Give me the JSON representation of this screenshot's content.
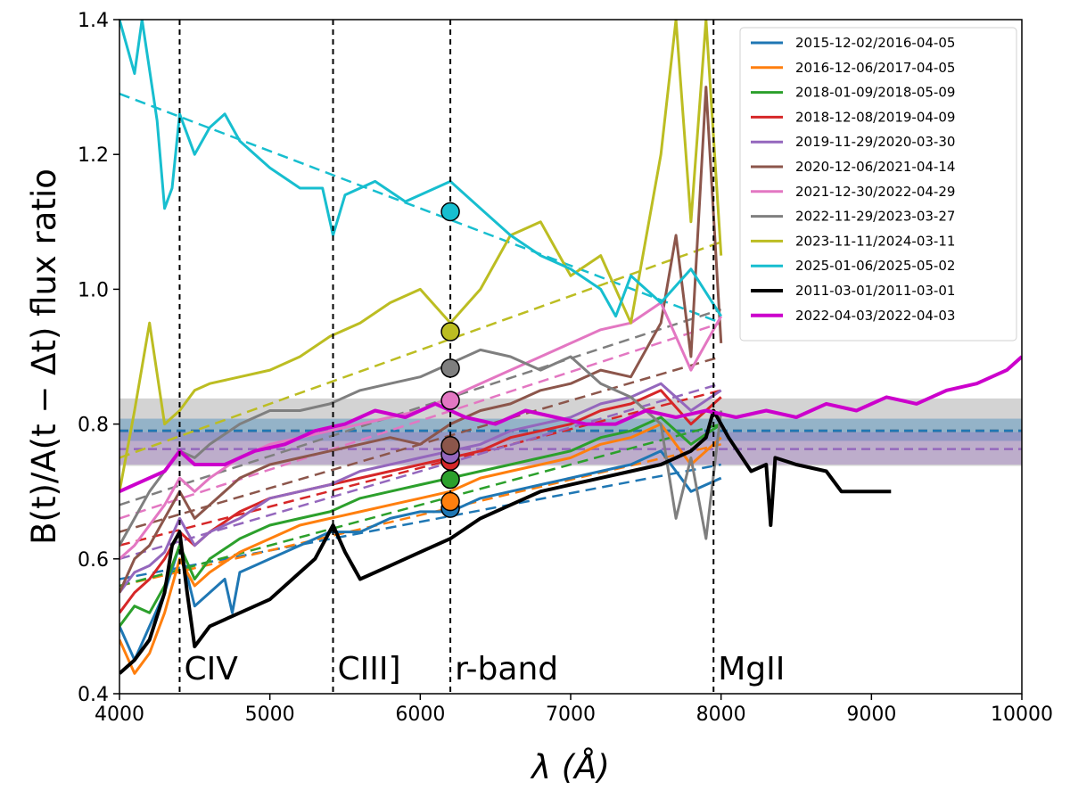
{
  "chart_data": {
    "type": "line",
    "xlabel": "λ (Å)",
    "ylabel": "B(t)/A(t − Δt) flux ratio",
    "xlim": [
      4000,
      10000
    ],
    "ylim": [
      0.4,
      1.4
    ],
    "xticks": [
      4000,
      5000,
      6000,
      7000,
      8000,
      9000,
      10000
    ],
    "yticks": [
      0.4,
      0.6,
      0.8,
      1.0,
      1.2,
      1.4
    ],
    "xtick_labels": [
      "4000",
      "5000",
      "6000",
      "7000",
      "8000",
      "9000",
      "10000"
    ],
    "ytick_labels": [
      "0.4",
      "0.6",
      "0.8",
      "1.0",
      "1.2",
      "1.4"
    ],
    "legend_position": "top-right",
    "vertical_lines": [
      {
        "x": 4400,
        "label": "CIV"
      },
      {
        "x": 5420,
        "label": "CIII]"
      },
      {
        "x": 6200,
        "label": "r-band"
      },
      {
        "x": 7950,
        "label": "MgII"
      }
    ],
    "horizontal_bands": [
      {
        "name": "band-gray",
        "y": 0.79,
        "low": 0.738,
        "high": 0.838,
        "color": "#808080",
        "line_color": "#000000"
      },
      {
        "name": "band-blue",
        "y": 0.79,
        "low": 0.775,
        "high": 0.808,
        "color": "#1f77b4",
        "line_color": "#1f77b4"
      },
      {
        "name": "band-purple",
        "y": 0.763,
        "low": 0.74,
        "high": 0.788,
        "color": "#9467bd",
        "line_color": "#9467bd"
      }
    ],
    "series": [
      {
        "name": "2015-12-02/2016-04-05",
        "color": "#1f77b4",
        "rband": 0.675,
        "fit": [
          0.57,
          0.74
        ],
        "x": [
          4000,
          4100,
          4200,
          4300,
          4400,
          4500,
          4600,
          4700,
          4750,
          4800,
          5000,
          5200,
          5400,
          5600,
          5800,
          6000,
          6200,
          6400,
          6600,
          6800,
          7000,
          7200,
          7400,
          7600,
          7800,
          8000
        ],
        "y": [
          0.5,
          0.45,
          0.5,
          0.55,
          0.62,
          0.53,
          0.55,
          0.57,
          0.52,
          0.58,
          0.6,
          0.62,
          0.64,
          0.64,
          0.66,
          0.67,
          0.67,
          0.69,
          0.7,
          0.71,
          0.72,
          0.73,
          0.74,
          0.76,
          0.7,
          0.72
        ]
      },
      {
        "name": "2016-12-06/2017-04-05",
        "color": "#ff7f0e",
        "rband": 0.685,
        "fit": [
          0.56,
          0.77
        ],
        "x": [
          4000,
          4100,
          4200,
          4300,
          4400,
          4500,
          4600,
          4800,
          5000,
          5200,
          5400,
          5600,
          5800,
          6000,
          6200,
          6400,
          6600,
          6800,
          7000,
          7200,
          7400,
          7600,
          7800,
          8000
        ],
        "y": [
          0.48,
          0.43,
          0.46,
          0.52,
          0.6,
          0.56,
          0.58,
          0.61,
          0.63,
          0.65,
          0.66,
          0.67,
          0.68,
          0.69,
          0.7,
          0.72,
          0.73,
          0.74,
          0.75,
          0.77,
          0.78,
          0.8,
          0.74,
          0.78
        ]
      },
      {
        "name": "2018-01-09/2018-05-09",
        "color": "#2ca02c",
        "rband": 0.718,
        "fit": [
          0.56,
          0.8
        ],
        "x": [
          4000,
          4100,
          4200,
          4300,
          4400,
          4500,
          4600,
          4800,
          5000,
          5200,
          5400,
          5600,
          5800,
          6000,
          6200,
          6400,
          6600,
          6800,
          7000,
          7200,
          7400,
          7600,
          7800,
          8000
        ],
        "y": [
          0.5,
          0.53,
          0.52,
          0.56,
          0.62,
          0.57,
          0.6,
          0.63,
          0.65,
          0.66,
          0.67,
          0.69,
          0.7,
          0.71,
          0.72,
          0.73,
          0.74,
          0.75,
          0.76,
          0.78,
          0.79,
          0.81,
          0.77,
          0.8
        ]
      },
      {
        "name": "2018-12-08/2019-04-09",
        "color": "#d62728",
        "rband": 0.745,
        "fit": [
          0.62,
          0.85
        ],
        "x": [
          4000,
          4100,
          4200,
          4300,
          4400,
          4500,
          4600,
          4800,
          5000,
          5200,
          5400,
          5600,
          5800,
          6000,
          6200,
          6400,
          6600,
          6800,
          7000,
          7200,
          7400,
          7600,
          7800,
          8000
        ],
        "y": [
          0.52,
          0.55,
          0.57,
          0.6,
          0.64,
          0.62,
          0.64,
          0.67,
          0.69,
          0.7,
          0.71,
          0.72,
          0.73,
          0.74,
          0.75,
          0.76,
          0.78,
          0.79,
          0.8,
          0.82,
          0.83,
          0.85,
          0.8,
          0.84
        ]
      },
      {
        "name": "2019-11-29/2020-03-30",
        "color": "#9467bd",
        "rband": 0.755,
        "fit": [
          0.6,
          0.86
        ],
        "x": [
          4000,
          4100,
          4200,
          4300,
          4400,
          4500,
          4600,
          4800,
          5000,
          5200,
          5400,
          5600,
          5800,
          6000,
          6200,
          6400,
          6600,
          6800,
          7000,
          7200,
          7400,
          7600,
          7800,
          8000
        ],
        "y": [
          0.55,
          0.58,
          0.59,
          0.61,
          0.66,
          0.62,
          0.64,
          0.66,
          0.69,
          0.7,
          0.71,
          0.73,
          0.74,
          0.75,
          0.76,
          0.77,
          0.79,
          0.8,
          0.81,
          0.83,
          0.84,
          0.86,
          0.82,
          0.85
        ]
      },
      {
        "name": "2020-12-06/2021-04-14",
        "color": "#8c564b",
        "rband": 0.768,
        "fit": [
          0.64,
          0.9
        ],
        "x": [
          4000,
          4100,
          4200,
          4300,
          4400,
          4500,
          4600,
          4800,
          5000,
          5200,
          5400,
          5600,
          5800,
          6000,
          6200,
          6400,
          6600,
          6800,
          7000,
          7200,
          7400,
          7600,
          7700,
          7800,
          7900,
          8000
        ],
        "y": [
          0.55,
          0.6,
          0.62,
          0.66,
          0.7,
          0.66,
          0.68,
          0.72,
          0.74,
          0.75,
          0.76,
          0.77,
          0.78,
          0.77,
          0.8,
          0.82,
          0.83,
          0.85,
          0.86,
          0.88,
          0.87,
          0.95,
          1.08,
          0.9,
          1.3,
          0.92
        ]
      },
      {
        "name": "2021-12-30/2022-04-29",
        "color": "#e377c2",
        "rband": 0.835,
        "fit": [
          0.66,
          0.95
        ],
        "x": [
          4000,
          4100,
          4200,
          4300,
          4400,
          4500,
          4600,
          4800,
          5000,
          5200,
          5400,
          5600,
          5800,
          6000,
          6200,
          6400,
          6600,
          6800,
          7000,
          7200,
          7400,
          7600,
          7800,
          8000
        ],
        "y": [
          0.6,
          0.62,
          0.65,
          0.68,
          0.72,
          0.7,
          0.72,
          0.75,
          0.77,
          0.78,
          0.79,
          0.8,
          0.81,
          0.82,
          0.84,
          0.86,
          0.88,
          0.9,
          0.92,
          0.94,
          0.95,
          0.98,
          0.88,
          0.96
        ]
      },
      {
        "name": "2022-11-29/2023-03-27",
        "color": "#7f7f7f",
        "rband": 0.883,
        "fit": [
          0.68,
          0.97
        ],
        "x": [
          4000,
          4100,
          4200,
          4300,
          4400,
          4500,
          4600,
          4800,
          5000,
          5200,
          5400,
          5600,
          5800,
          6000,
          6200,
          6400,
          6600,
          6800,
          7000,
          7200,
          7400,
          7600,
          7700,
          7800,
          7900,
          8000
        ],
        "y": [
          0.62,
          0.66,
          0.7,
          0.73,
          0.76,
          0.75,
          0.77,
          0.8,
          0.82,
          0.82,
          0.83,
          0.85,
          0.86,
          0.87,
          0.89,
          0.91,
          0.9,
          0.88,
          0.9,
          0.86,
          0.84,
          0.8,
          0.66,
          0.75,
          0.63,
          0.82
        ]
      },
      {
        "name": "2023-11-11/2024-03-11",
        "color": "#bcbd22",
        "rband": 0.937,
        "fit": [
          0.75,
          1.07
        ],
        "x": [
          4000,
          4100,
          4200,
          4300,
          4400,
          4500,
          4600,
          4800,
          5000,
          5200,
          5400,
          5600,
          5800,
          6000,
          6200,
          6400,
          6600,
          6800,
          7000,
          7200,
          7400,
          7600,
          7700,
          7800,
          7900,
          8000
        ],
        "y": [
          0.7,
          0.82,
          0.95,
          0.8,
          0.82,
          0.85,
          0.86,
          0.87,
          0.88,
          0.9,
          0.93,
          0.95,
          0.98,
          1.0,
          0.95,
          1.0,
          1.08,
          1.1,
          1.02,
          1.05,
          0.95,
          1.2,
          1.4,
          1.1,
          1.4,
          1.05
        ]
      },
      {
        "name": "2025-01-06/2025-05-02",
        "color": "#17becf",
        "rband": 1.115,
        "fit": [
          1.29,
          0.95
        ],
        "x": [
          4000,
          4100,
          4150,
          4250,
          4300,
          4350,
          4400,
          4500,
          4600,
          4700,
          4800,
          5000,
          5200,
          5350,
          5420,
          5500,
          5700,
          5900,
          6100,
          6200,
          6400,
          6600,
          6800,
          7000,
          7200,
          7300,
          7400,
          7600,
          7800,
          8000
        ],
        "y": [
          1.4,
          1.32,
          1.4,
          1.25,
          1.12,
          1.15,
          1.26,
          1.2,
          1.24,
          1.26,
          1.22,
          1.18,
          1.15,
          1.15,
          1.08,
          1.14,
          1.16,
          1.13,
          1.15,
          1.16,
          1.12,
          1.08,
          1.05,
          1.03,
          1.0,
          0.96,
          1.02,
          0.98,
          1.03,
          0.96
        ]
      },
      {
        "name": "2011-03-01/2011-03-01",
        "color": "#000000",
        "rband": null,
        "fit": null,
        "x": [
          4000,
          4100,
          4200,
          4300,
          4350,
          4400,
          4450,
          4500,
          4600,
          4800,
          5000,
          5200,
          5300,
          5420,
          5500,
          5600,
          5800,
          6000,
          6200,
          6400,
          6600,
          6800,
          7000,
          7200,
          7400,
          7600,
          7800,
          7900,
          7950,
          8050,
          8200,
          8300,
          8330,
          8360,
          8500,
          8700,
          8800,
          9000,
          9130
        ],
        "y": [
          0.43,
          0.45,
          0.48,
          0.55,
          0.62,
          0.64,
          0.55,
          0.47,
          0.5,
          0.52,
          0.54,
          0.58,
          0.6,
          0.65,
          0.61,
          0.57,
          0.59,
          0.61,
          0.63,
          0.66,
          0.68,
          0.7,
          0.71,
          0.72,
          0.73,
          0.74,
          0.76,
          0.78,
          0.82,
          0.78,
          0.73,
          0.74,
          0.65,
          0.75,
          0.74,
          0.73,
          0.7,
          0.7,
          0.7
        ]
      },
      {
        "name": "2022-04-03/2022-04-03",
        "color": "#cc00cc",
        "rband": null,
        "fit": null,
        "x": [
          4000,
          4100,
          4200,
          4300,
          4400,
          4500,
          4700,
          4900,
          5100,
          5300,
          5500,
          5700,
          5900,
          6100,
          6300,
          6500,
          6700,
          6900,
          7100,
          7300,
          7500,
          7700,
          7900,
          8100,
          8300,
          8500,
          8700,
          8900,
          9100,
          9300,
          9500,
          9700,
          9900,
          10000
        ],
        "y": [
          0.7,
          0.71,
          0.72,
          0.73,
          0.76,
          0.74,
          0.74,
          0.76,
          0.77,
          0.79,
          0.8,
          0.82,
          0.81,
          0.83,
          0.81,
          0.8,
          0.82,
          0.81,
          0.8,
          0.8,
          0.82,
          0.81,
          0.82,
          0.81,
          0.82,
          0.81,
          0.83,
          0.82,
          0.84,
          0.83,
          0.85,
          0.86,
          0.88,
          0.9
        ]
      }
    ]
  }
}
